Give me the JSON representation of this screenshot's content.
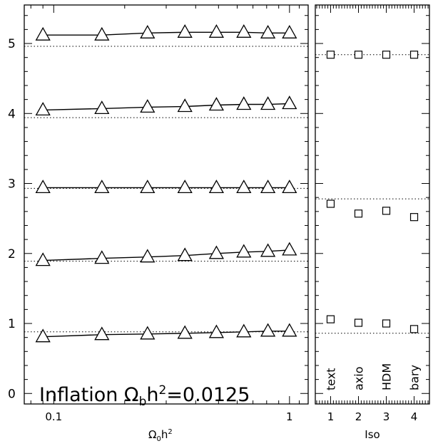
{
  "chart_data": [
    {
      "type": "line",
      "annotation": "Inflation Ω_b h²=0.0125",
      "annotation_parts": {
        "text": "Inflation Ω",
        "sub": "b",
        "mid": "h",
        "sup": "2",
        "tail": "=0.0125"
      },
      "xlabel": "Ω₀h²",
      "xlabel_parts": {
        "base": "Ω",
        "sub": "0",
        "mid": "h",
        "sup": "2"
      },
      "ylabel": "",
      "xscale": "log",
      "xlim": [
        0.075,
        1.2
      ],
      "ylim": [
        -0.15,
        5.55
      ],
      "xtick_labels": [
        {
          "value": 0.1,
          "label": "0.1"
        },
        {
          "value": 1,
          "label": "1"
        }
      ],
      "ytick_labels": [
        0,
        1,
        2,
        3,
        4,
        5
      ],
      "x": [
        0.09,
        0.16,
        0.25,
        0.36,
        0.49,
        0.64,
        0.81,
        1.0
      ],
      "series": [
        {
          "values": [
            0.81,
            0.84,
            0.85,
            0.86,
            0.87,
            0.88,
            0.89,
            0.89
          ],
          "marker": "triangle",
          "line": "solid"
        },
        {
          "values": [
            1.9,
            1.93,
            1.95,
            1.97,
            2.0,
            2.02,
            2.03,
            2.05
          ],
          "marker": "triangle",
          "line": "solid"
        },
        {
          "values": [
            2.94,
            2.94,
            2.94,
            2.94,
            2.94,
            2.94,
            2.94,
            2.94
          ],
          "marker": "triangle",
          "line": "solid"
        },
        {
          "values": [
            4.05,
            4.07,
            4.09,
            4.1,
            4.12,
            4.13,
            4.13,
            4.14
          ],
          "marker": "triangle",
          "line": "solid"
        },
        {
          "values": [
            5.12,
            5.12,
            5.15,
            5.16,
            5.16,
            5.16,
            5.15,
            5.15
          ],
          "marker": "triangle",
          "line": "solid"
        }
      ],
      "reference_lines": [
        0.88,
        1.89,
        2.93,
        3.94,
        4.96
      ]
    },
    {
      "type": "scatter",
      "xlabel": "Iso",
      "ylabel": "",
      "xlim": [
        0.45,
        4.55
      ],
      "ylim": [
        -0.15,
        5.55
      ],
      "xticks": [
        1,
        2,
        3,
        4
      ],
      "x": [
        1,
        2,
        3,
        4
      ],
      "point_labels": [
        "text",
        "axio",
        "HDM",
        "bary"
      ],
      "series": [
        {
          "values": [
            1.06,
            1.01,
            1.0,
            0.92
          ],
          "marker": "square"
        },
        {
          "values": [
            2.71,
            2.57,
            2.61,
            2.52
          ],
          "marker": "square"
        },
        {
          "values": [
            4.84,
            4.84,
            4.84,
            4.84
          ],
          "marker": "square"
        }
      ],
      "reference_lines": [
        0.86,
        2.78,
        4.84
      ]
    }
  ]
}
